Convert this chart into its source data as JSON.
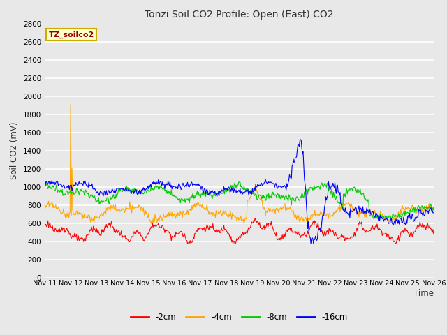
{
  "title": "Tonzi Soil CO2 Profile: Open (East) CO2",
  "ylabel": "Soil CO2 (mV)",
  "xlabel": "Time",
  "watermark": "TZ_soilco2",
  "ylim": [
    0,
    2800
  ],
  "yticks": [
    0,
    200,
    400,
    600,
    800,
    1000,
    1200,
    1400,
    1600,
    1800,
    2000,
    2200,
    2400,
    2600,
    2800
  ],
  "x_labels": [
    "Nov 11",
    "Nov 12",
    "Nov 13",
    "Nov 14",
    "Nov 15",
    "Nov 16",
    "Nov 17",
    "Nov 18",
    "Nov 19",
    "Nov 20",
    "Nov 21",
    "Nov 22",
    "Nov 23",
    "Nov 24",
    "Nov 25",
    "Nov 26"
  ],
  "colors": {
    "-2cm": "#ff0000",
    "-4cm": "#ffa500",
    "-8cm": "#00cc00",
    "-16cm": "#0000ff"
  },
  "legend_labels": [
    "-2cm",
    "-4cm",
    "-8cm",
    "-16cm"
  ],
  "fig_bg_color": "#e8e8e8",
  "plot_bg_color": "#e8e8e8",
  "grid_color": "#ffffff",
  "n_points": 600
}
